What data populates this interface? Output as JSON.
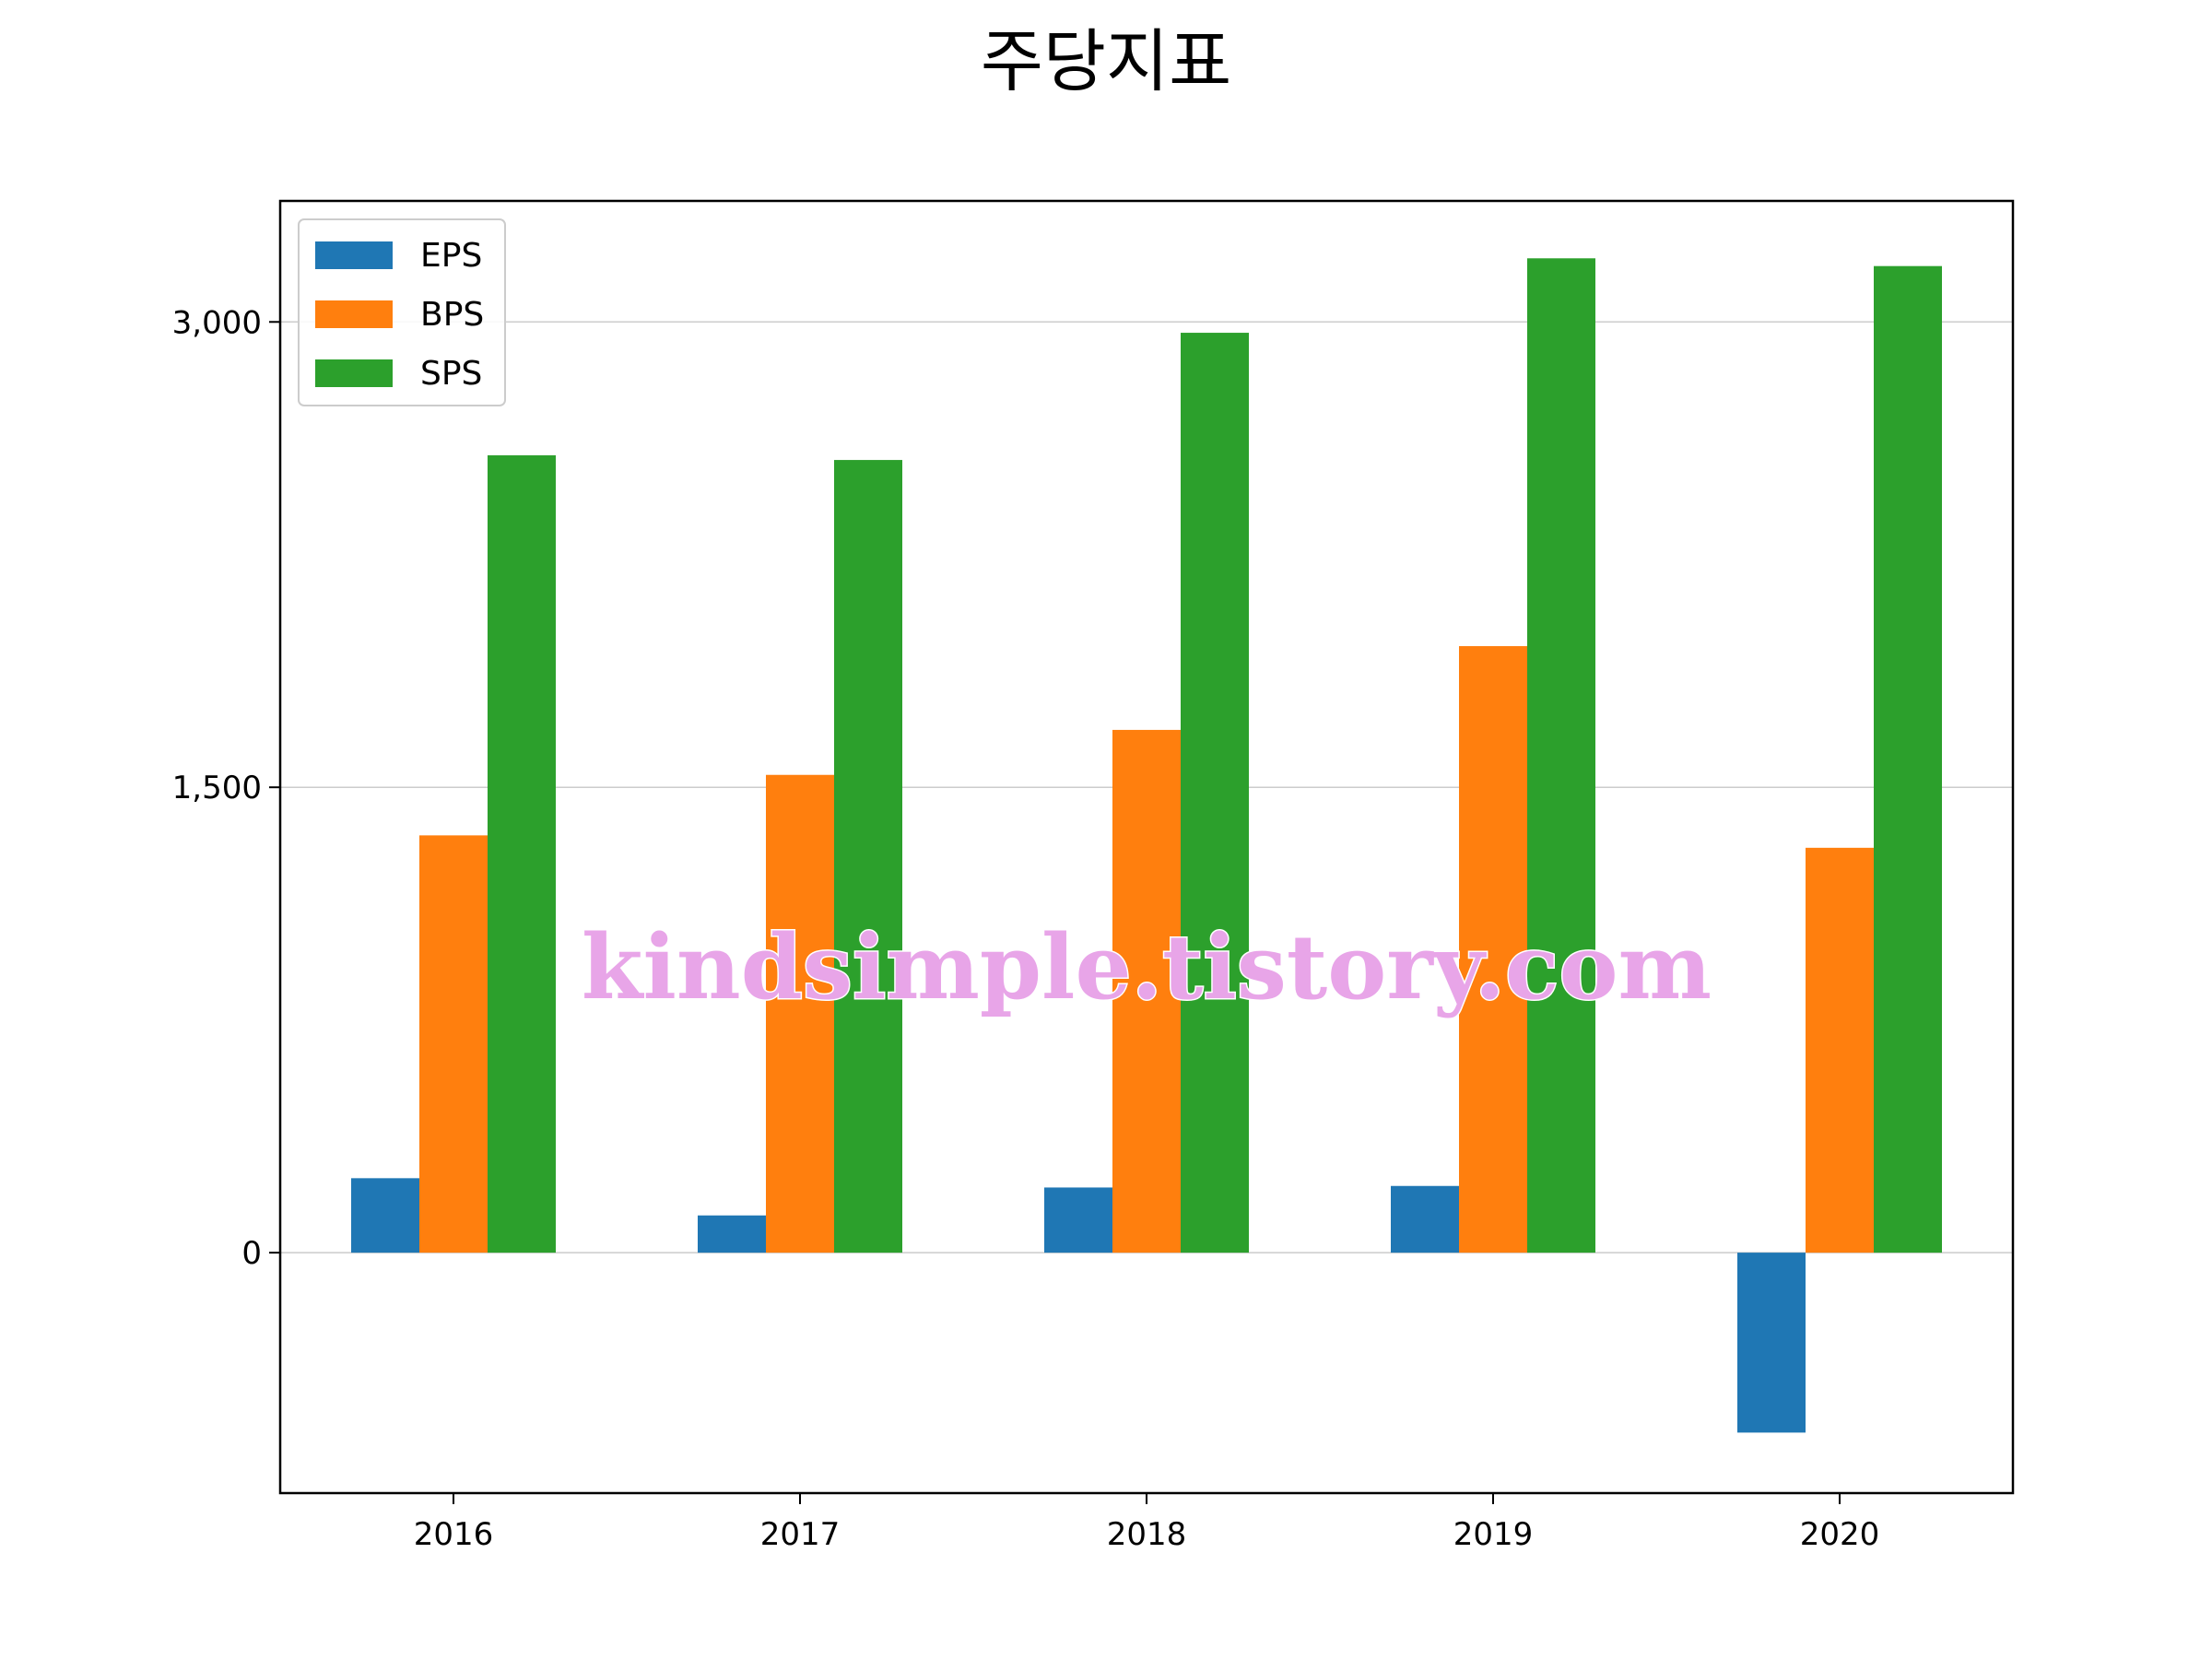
{
  "chart_data": {
    "type": "bar",
    "title": "주당지표",
    "xlabel": "",
    "ylabel": "",
    "categories": [
      "2016",
      "2017",
      "2018",
      "2019",
      "2020"
    ],
    "series": [
      {
        "name": "EPS",
        "values": [
          240,
          120,
          210,
          215,
          -580
        ],
        "color": "#1f77b4"
      },
      {
        "name": "BPS",
        "values": [
          1345,
          1540,
          1685,
          1955,
          1305
        ],
        "color": "#ff7f0e"
      },
      {
        "name": "SPS",
        "values": [
          2570,
          2555,
          2965,
          3205,
          3180
        ],
        "color": "#2ca02c"
      }
    ],
    "ylim": [
      -775,
      3390
    ],
    "yticks": [
      0,
      1500,
      3000
    ],
    "ytick_labels": [
      "0",
      "1,500",
      "3,000"
    ],
    "grid": "y-major",
    "legend_position": "top-left"
  },
  "watermark": "kindsimple.tistory.com",
  "colors": {
    "gridline": "#cccccc",
    "axes": "#000000",
    "watermark": "#e8a5e8"
  }
}
